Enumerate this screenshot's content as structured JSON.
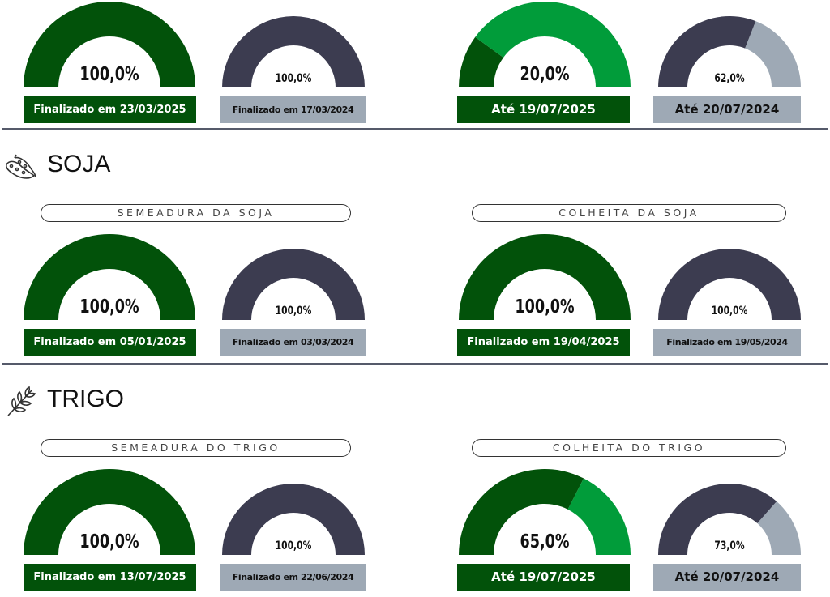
{
  "colors": {
    "dark_green": "#02520a",
    "light_green": "#019c3a",
    "navy": "#3c3c50",
    "grey": "#9ea9b5"
  },
  "sections": [
    {
      "title": "",
      "icon": "",
      "pills": [],
      "gauges": [
        {
          "value_text": "100,0%",
          "value": 100,
          "label": "Finalizado em 23/03/2025",
          "style": "current"
        },
        {
          "value_text": "100,0%",
          "value": 100,
          "label": "Finalizado em 17/03/2024",
          "style": "previous"
        },
        {
          "value_text": "20,0%",
          "value": 20,
          "label": "Até 19/07/2025",
          "style": "current"
        },
        {
          "value_text": "62,0%",
          "value": 62,
          "label": "Até 20/07/2024",
          "style": "previous"
        }
      ]
    },
    {
      "title": "SOJA",
      "icon": "soybean-icon",
      "pills": [
        "SEMEADURA DA SOJA",
        "COLHEITA DA SOJA"
      ],
      "gauges": [
        {
          "value_text": "100,0%",
          "value": 100,
          "label": "Finalizado em 05/01/2025",
          "style": "current"
        },
        {
          "value_text": "100,0%",
          "value": 100,
          "label": "Finalizado em 03/03/2024",
          "style": "previous"
        },
        {
          "value_text": "100,0%",
          "value": 100,
          "label": "Finalizado em 19/04/2025",
          "style": "current"
        },
        {
          "value_text": "100,0%",
          "value": 100,
          "label": "Finalizado em 19/05/2024",
          "style": "previous"
        }
      ]
    },
    {
      "title": "TRIGO",
      "icon": "wheat-icon",
      "pills": [
        "SEMEADURA DO TRIGO",
        "COLHEITA DO TRIGO"
      ],
      "gauges": [
        {
          "value_text": "100,0%",
          "value": 100,
          "label": "Finalizado em 13/07/2025",
          "style": "current"
        },
        {
          "value_text": "100,0%",
          "value": 100,
          "label": "Finalizado em 22/06/2024",
          "style": "previous"
        },
        {
          "value_text": "65,0%",
          "value": 65,
          "label": "Até 19/07/2025",
          "style": "current"
        },
        {
          "value_text": "73,0%",
          "value": 73,
          "label": "Até 20/07/2024",
          "style": "previous"
        }
      ]
    }
  ]
}
